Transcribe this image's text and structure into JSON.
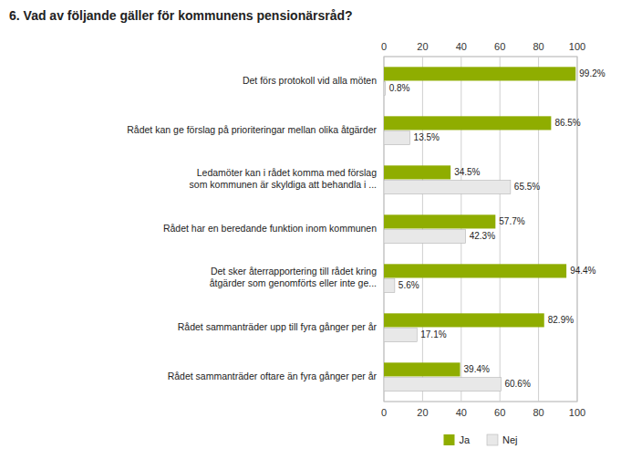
{
  "chart_data": {
    "type": "bar",
    "orientation": "horizontal",
    "title": "6. Vad av följande gäller för kommunens pensionärsråd?",
    "categories": [
      "Det förs protokoll vid alla möten",
      "Rådet kan ge förslag på prioriteringar mellan olika åtgärder",
      "Ledamöter kan i rådet komma med förslag\nsom kommunen är skyldiga att behandla i ...",
      "Rådet har en beredande funktion inom kommunen",
      "Det sker återrapportering till rådet kring\nåtgärder som genomförts eller inte ge...",
      "Rådet sammanträder upp till fyra gånger per år",
      "Rådet sammanträder oftare än fyra gånger per år"
    ],
    "series": [
      {
        "name": "Ja",
        "color": "#8fad00",
        "values": [
          99.2,
          86.5,
          34.5,
          57.7,
          94.4,
          82.9,
          39.4
        ],
        "value_labels": [
          "99.2%",
          "86.5%",
          "34.5%",
          "57.7%",
          "94.4%",
          "82.9%",
          "39.4%"
        ]
      },
      {
        "name": "Nej",
        "color": "#e8e8e8",
        "values": [
          0.8,
          13.5,
          65.5,
          42.3,
          5.6,
          17.1,
          60.6
        ],
        "value_labels": [
          "0.8%",
          "13.5%",
          "65.5%",
          "42.3%",
          "5.6%",
          "17.1%",
          "60.6%"
        ]
      }
    ],
    "xlim": [
      0,
      100
    ],
    "xticks": [
      0,
      20,
      40,
      60,
      80,
      100
    ],
    "grid": true,
    "legend": "bottom",
    "data_labels": true
  }
}
